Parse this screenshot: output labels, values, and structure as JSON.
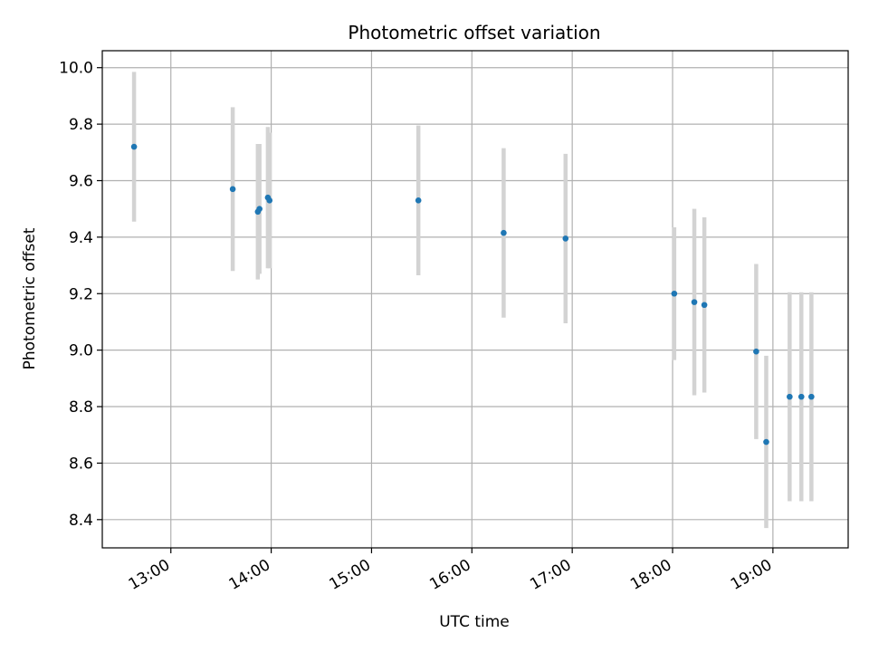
{
  "chart_data": {
    "type": "scatter",
    "title": "Photometric offset variation",
    "xlabel": "UTC time",
    "ylabel": "Photometric offset",
    "x_axis_kind": "time",
    "xlim": [
      "12:19",
      "19:45"
    ],
    "ylim": [
      8.3,
      10.06
    ],
    "xticks": [
      "13:00",
      "14:00",
      "15:00",
      "16:00",
      "17:00",
      "18:00",
      "19:00"
    ],
    "yticks": [
      "8.4",
      "8.6",
      "8.8",
      "9.0",
      "9.2",
      "9.4",
      "9.6",
      "9.8",
      "10.0"
    ],
    "grid": true,
    "marker_color": "#1f77b4",
    "errorbar_color": "#d3d3d3",
    "points": [
      {
        "x": "12:38",
        "y": 9.72,
        "err": 0.265
      },
      {
        "x": "13:37",
        "y": 9.57,
        "err": 0.29
      },
      {
        "x": "13:52",
        "y": 9.49,
        "err": 0.24
      },
      {
        "x": "13:53",
        "y": 9.5,
        "err": 0.23
      },
      {
        "x": "13:58",
        "y": 9.54,
        "err": 0.25
      },
      {
        "x": "13:59",
        "y": 9.53,
        "err": 0.24
      },
      {
        "x": "15:28",
        "y": 9.53,
        "err": 0.265
      },
      {
        "x": "16:19",
        "y": 9.415,
        "err": 0.3
      },
      {
        "x": "16:56",
        "y": 9.395,
        "err": 0.3
      },
      {
        "x": "18:01",
        "y": 9.2,
        "err": 0.235
      },
      {
        "x": "18:13",
        "y": 9.17,
        "err": 0.33
      },
      {
        "x": "18:19",
        "y": 9.16,
        "err": 0.31
      },
      {
        "x": "18:50",
        "y": 8.995,
        "err": 0.31
      },
      {
        "x": "18:56",
        "y": 8.675,
        "err": 0.305
      },
      {
        "x": "19:10",
        "y": 8.835,
        "err": 0.37
      },
      {
        "x": "19:17",
        "y": 8.835,
        "err": 0.37
      },
      {
        "x": "19:23",
        "y": 8.835,
        "err": 0.37
      }
    ]
  }
}
